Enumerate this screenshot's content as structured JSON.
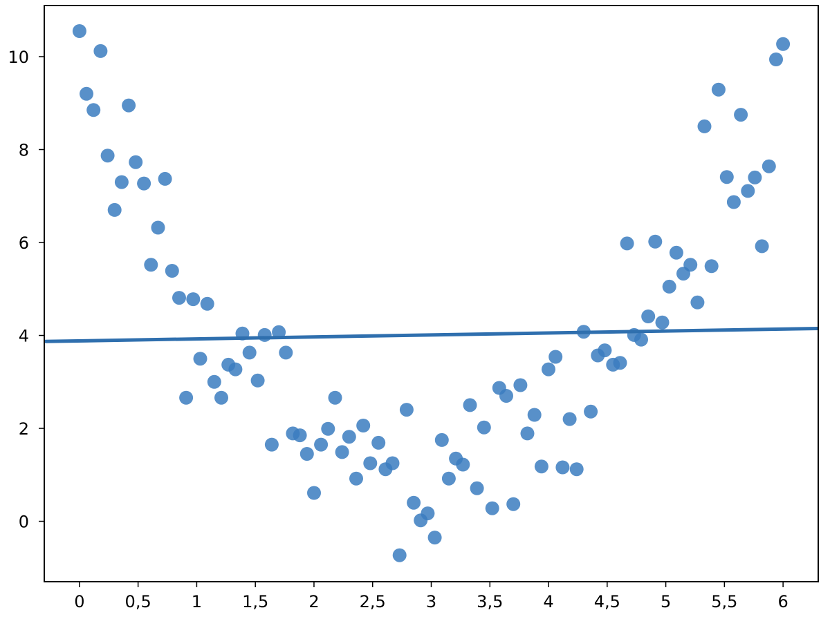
{
  "chart_data": {
    "type": "scatter",
    "title": "",
    "xlabel": "",
    "ylabel": "",
    "xlim": [
      -0.3,
      6.3
    ],
    "ylim": [
      -1.3,
      11.1
    ],
    "grid": false,
    "x_ticks": [
      0,
      0.5,
      1,
      1.5,
      2,
      2.5,
      3,
      3.5,
      4,
      4.5,
      5,
      5.5,
      6
    ],
    "x_tick_labels": [
      "0",
      "0,5",
      "1",
      "1,5",
      "2",
      "2,5",
      "3",
      "3,5",
      "4",
      "4,5",
      "5",
      "5,5",
      "6"
    ],
    "y_ticks": [
      0,
      2,
      4,
      6,
      8,
      10
    ],
    "y_tick_labels": [
      "0",
      "2",
      "4",
      "6",
      "8",
      "10"
    ],
    "colors": {
      "points": "#3b7dbf",
      "line": "#2f6fae",
      "axes": "#000000"
    },
    "series": [
      {
        "type": "scatter",
        "x": [
          0.0,
          0.06,
          0.12,
          0.18,
          0.24,
          0.3,
          0.36,
          0.42,
          0.48,
          0.55,
          0.61,
          0.67,
          0.73,
          0.79,
          0.85,
          0.91,
          0.97,
          1.03,
          1.09,
          1.15,
          1.21,
          1.27,
          1.33,
          1.39,
          1.45,
          1.52,
          1.58,
          1.64,
          1.7,
          1.76,
          1.82,
          1.88,
          1.94,
          2.0,
          2.06,
          2.12,
          2.18,
          2.24,
          2.3,
          2.36,
          2.42,
          2.48,
          2.55,
          2.61,
          2.67,
          2.73,
          2.79,
          2.85,
          2.91,
          2.97,
          3.03,
          3.09,
          3.15,
          3.21,
          3.27,
          3.33,
          3.39,
          3.45,
          3.52,
          3.58,
          3.64,
          3.7,
          3.76,
          3.82,
          3.88,
          3.94,
          4.0,
          4.06,
          4.12,
          4.18,
          4.24,
          4.3,
          4.36,
          4.42,
          4.48,
          4.55,
          4.61,
          4.67,
          4.73,
          4.79,
          4.85,
          4.91,
          4.97,
          5.03,
          5.09,
          5.15,
          5.21,
          5.27,
          5.33,
          5.39,
          5.45,
          5.52,
          5.58,
          5.64,
          5.7,
          5.76,
          5.82,
          5.88,
          5.94,
          6.0
        ],
        "y": [
          10.55,
          9.2,
          8.85,
          10.12,
          7.87,
          6.7,
          7.3,
          8.95,
          7.73,
          7.27,
          5.52,
          6.32,
          7.37,
          5.39,
          4.81,
          2.66,
          4.78,
          3.5,
          4.68,
          3.0,
          2.66,
          3.37,
          3.27,
          4.04,
          3.63,
          3.03,
          4.01,
          1.65,
          4.07,
          3.63,
          1.89,
          1.85,
          1.45,
          0.61,
          1.65,
          1.99,
          2.66,
          1.49,
          1.82,
          0.92,
          2.06,
          1.25,
          1.69,
          1.12,
          1.25,
          -0.73,
          2.4,
          0.4,
          0.02,
          0.17,
          -0.35,
          1.75,
          0.92,
          1.35,
          1.22,
          2.5,
          0.71,
          2.02,
          0.28,
          2.87,
          2.7,
          0.37,
          2.93,
          1.89,
          2.29,
          1.18,
          3.27,
          3.54,
          1.16,
          2.2,
          1.12,
          4.08,
          2.36,
          3.57,
          3.68,
          3.37,
          3.41,
          5.98,
          4.01,
          3.91,
          4.41,
          6.02,
          4.28,
          5.05,
          5.78,
          5.33,
          5.52,
          4.71,
          8.5,
          5.49,
          9.29,
          7.41,
          6.87,
          8.75,
          7.11,
          7.4,
          5.92,
          7.64,
          9.94,
          10.27
        ]
      },
      {
        "type": "line",
        "x": [
          -0.3,
          6.3
        ],
        "y": [
          3.87,
          4.15
        ]
      }
    ]
  }
}
